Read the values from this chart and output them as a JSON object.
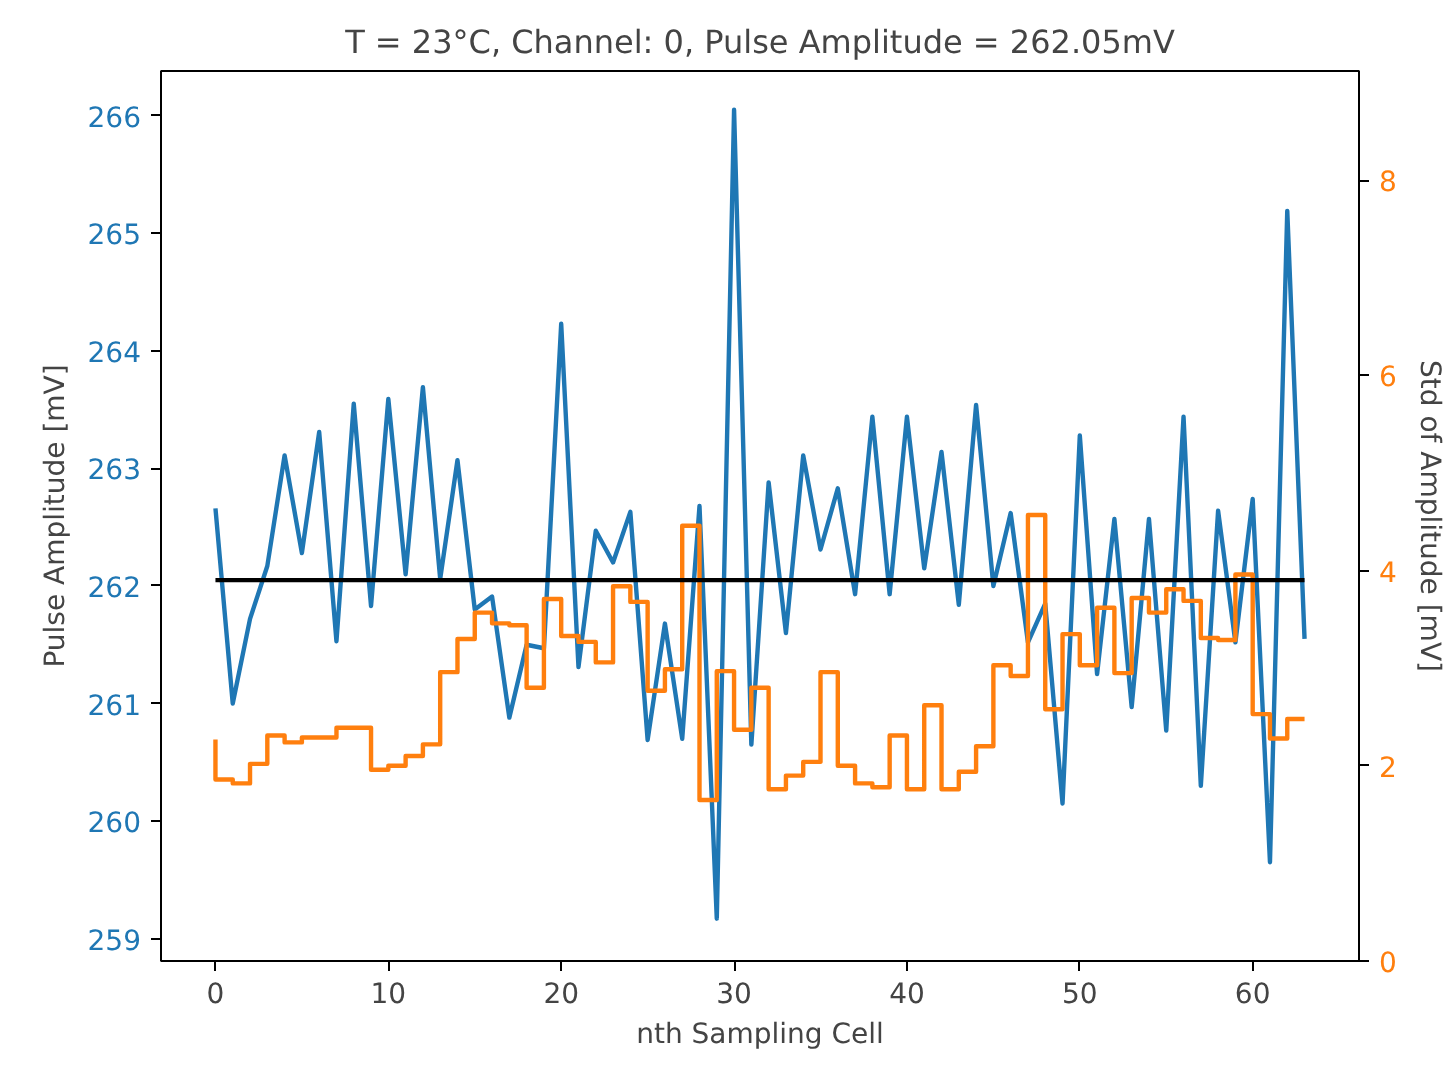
{
  "chart_data": {
    "type": "line",
    "title": "T = 23°C, Channel: 0, Pulse Amplitude = 262.05mV",
    "xlabel": "nth Sampling Cell",
    "ylabel": "Pulse Amplitude [mV]",
    "y2label": "Std of Amplitude [mV]",
    "x": [
      0,
      1,
      2,
      3,
      4,
      5,
      6,
      7,
      8,
      9,
      10,
      11,
      12,
      13,
      14,
      15,
      16,
      17,
      18,
      19,
      20,
      21,
      22,
      23,
      24,
      25,
      26,
      27,
      28,
      29,
      30,
      31,
      32,
      33,
      34,
      35,
      36,
      37,
      38,
      39,
      40,
      41,
      42,
      43,
      44,
      45,
      46,
      47,
      48,
      49,
      50,
      51,
      52,
      53,
      54,
      55,
      56,
      57,
      58,
      59,
      60,
      61,
      62,
      63
    ],
    "series": [
      {
        "color": "#1f77b4",
        "values": [
          262.66,
          261.0,
          261.72,
          262.17,
          263.11,
          262.28,
          263.31,
          261.53,
          263.55,
          261.83,
          263.59,
          262.1,
          263.69,
          262.06,
          263.07,
          261.8,
          261.91,
          260.88,
          261.5,
          261.47,
          264.23,
          261.31,
          262.47,
          262.2,
          262.63,
          260.69,
          261.68,
          260.7,
          262.68,
          259.17,
          266.05,
          260.65,
          262.88,
          261.6,
          263.11,
          262.31,
          262.83,
          261.93,
          263.44,
          261.93,
          263.44,
          262.15,
          263.14,
          261.84,
          263.54,
          262.0,
          262.62,
          261.52,
          261.85,
          260.15,
          263.28,
          261.25,
          262.57,
          260.97,
          262.57,
          260.77,
          263.44,
          260.3,
          262.64,
          261.52,
          262.74,
          259.65,
          265.19,
          261.55
        ]
      },
      {
        "type": "step",
        "axis": "y2",
        "color": "#ff7f0e",
        "values": [
          2.27,
          1.86,
          1.82,
          2.02,
          2.31,
          2.24,
          2.29,
          2.29,
          2.39,
          2.39,
          1.96,
          2.0,
          2.1,
          2.22,
          2.96,
          3.3,
          3.57,
          3.46,
          3.44,
          2.8,
          3.71,
          3.33,
          3.27,
          3.06,
          3.84,
          3.68,
          2.77,
          2.99,
          4.46,
          1.65,
          2.97,
          2.37,
          2.8,
          1.76,
          1.9,
          2.04,
          2.96,
          2.0,
          1.82,
          1.78,
          2.31,
          1.76,
          2.62,
          1.76,
          1.94,
          2.2,
          3.03,
          2.92,
          4.57,
          2.58,
          3.35,
          3.03,
          3.62,
          2.95,
          3.72,
          3.57,
          3.81,
          3.69,
          3.31,
          3.29,
          3.96,
          2.53,
          2.28,
          2.48
        ]
      }
    ],
    "ref_lines": [
      {
        "axis": "y",
        "value": 262.05,
        "color": "#000000"
      }
    ],
    "xlim": [
      -3.15,
      66.15
    ],
    "xticks": [
      0,
      10,
      20,
      30,
      40,
      50,
      60
    ],
    "ylim": [
      258.81,
      266.38
    ],
    "yticks": [
      259,
      260,
      261,
      262,
      263,
      264,
      265,
      266
    ],
    "y2lim": [
      0,
      9.12
    ],
    "y2ticks": [
      0,
      2,
      4,
      6,
      8
    ],
    "grid": false
  }
}
